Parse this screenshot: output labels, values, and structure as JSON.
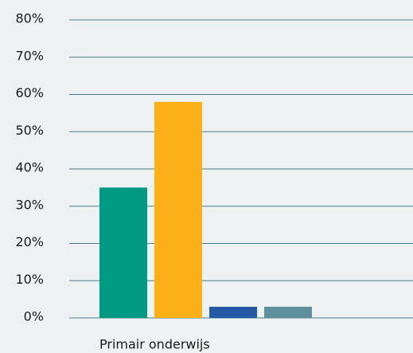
{
  "chart_data": {
    "type": "bar",
    "categories": [
      "Primair onderwijs"
    ],
    "series": [
      {
        "color": "#009a82",
        "values": [
          35
        ]
      },
      {
        "color": "#fcb017",
        "values": [
          58
        ]
      },
      {
        "color": "#2359a5",
        "values": [
          3
        ]
      },
      {
        "color": "#5f8f9a",
        "values": [
          3
        ]
      }
    ],
    "ylim": [
      0,
      80
    ],
    "yticks": [
      {
        "value": 0,
        "label": "0%"
      },
      {
        "value": 10,
        "label": "10%"
      },
      {
        "value": 20,
        "label": "20%"
      },
      {
        "value": 30,
        "label": "30%"
      },
      {
        "value": 40,
        "label": "40%"
      },
      {
        "value": 50,
        "label": "50%"
      },
      {
        "value": 60,
        "label": "60%"
      },
      {
        "value": 70,
        "label": "70%"
      },
      {
        "value": 80,
        "label": "80%"
      }
    ],
    "grid": true
  }
}
